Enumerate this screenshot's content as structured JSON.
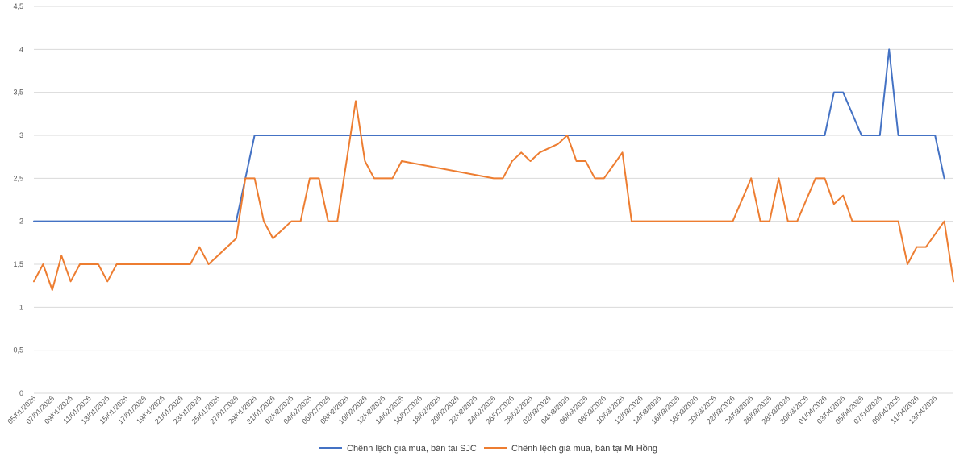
{
  "chart_data": {
    "type": "line",
    "title": "",
    "xlabel": "",
    "ylabel": "",
    "ylim": [
      0,
      4.5
    ],
    "y_ticks": [
      "0",
      "0,5",
      "1",
      "1,5",
      "2",
      "2,5",
      "3",
      "3,5",
      "4",
      "4,5"
    ],
    "grid": "horizontal",
    "legend_position": "bottom",
    "x_tick_labels": [
      "05/01/2026",
      "07/01/2026",
      "09/01/2026",
      "11/01/2026",
      "13/01/2026",
      "15/01/2026",
      "17/01/2026",
      "19/01/2026",
      "21/01/2026",
      "23/01/2026",
      "25/01/2026",
      "27/01/2026",
      "29/01/2026",
      "31/01/2026",
      "02/02/2026",
      "04/02/2026",
      "06/02/2026",
      "08/02/2026",
      "10/02/2026",
      "12/02/2026",
      "14/02/2026",
      "16/02/2026",
      "18/02/2026",
      "20/02/2026",
      "22/02/2026",
      "24/02/2026",
      "26/02/2026",
      "28/02/2026",
      "02/03/2026",
      "04/03/2026",
      "06/03/2026",
      "08/03/2026",
      "10/03/2026",
      "12/03/2026",
      "14/03/2026",
      "16/03/2026",
      "18/03/2026",
      "20/03/2026",
      "22/03/2026",
      "24/03/2026",
      "26/03/2026",
      "28/03/2026",
      "30/03/2026",
      "01/04/2026",
      "03/04/2026",
      "05/04/2026",
      "07/04/2026",
      "09/04/2026",
      "11/04/2026",
      "13/04/2026"
    ],
    "series": [
      {
        "name": "Chênh lệch giá mua, bán tại SJC",
        "color": "#4472C4",
        "points": [
          [
            "05/01/2026",
            2
          ],
          [
            "27/01/2026",
            2
          ],
          [
            "29/01/2026",
            3
          ],
          [
            "01/04/2026",
            3
          ],
          [
            "02/04/2026",
            3.5
          ],
          [
            "03/04/2026",
            3.5
          ],
          [
            "05/04/2026",
            3
          ],
          [
            "07/04/2026",
            3
          ],
          [
            "08/04/2026",
            4
          ],
          [
            "09/04/2026",
            3
          ],
          [
            "13/04/2026",
            3
          ],
          [
            "14/04/2026",
            2.5
          ]
        ]
      },
      {
        "name": "Chênh lệch giá mua, bán tại Mi Hồng",
        "color": "#ED7D31",
        "points": [
          [
            "05/01/2026",
            1.3
          ],
          [
            "06/01/2026",
            1.5
          ],
          [
            "07/01/2026",
            1.2
          ],
          [
            "08/01/2026",
            1.6
          ],
          [
            "09/01/2026",
            1.3
          ],
          [
            "10/01/2026",
            1.5
          ],
          [
            "12/01/2026",
            1.5
          ],
          [
            "13/01/2026",
            1.3
          ],
          [
            "14/01/2026",
            1.5
          ],
          [
            "22/01/2026",
            1.5
          ],
          [
            "23/01/2026",
            1.7
          ],
          [
            "24/01/2026",
            1.5
          ],
          [
            "27/01/2026",
            1.8
          ],
          [
            "28/01/2026",
            2.5
          ],
          [
            "29/01/2026",
            2.5
          ],
          [
            "30/01/2026",
            2.0
          ],
          [
            "31/01/2026",
            1.8
          ],
          [
            "02/02/2026",
            2.0
          ],
          [
            "03/02/2026",
            2.0
          ],
          [
            "04/02/2026",
            2.5
          ],
          [
            "05/02/2026",
            2.5
          ],
          [
            "06/02/2026",
            2.0
          ],
          [
            "07/02/2026",
            2.0
          ],
          [
            "09/02/2026",
            3.4
          ],
          [
            "10/02/2026",
            2.7
          ],
          [
            "11/02/2026",
            2.5
          ],
          [
            "13/02/2026",
            2.5
          ],
          [
            "14/02/2026",
            2.7
          ],
          [
            "24/02/2026",
            2.5
          ],
          [
            "25/02/2026",
            2.5
          ],
          [
            "26/02/2026",
            2.7
          ],
          [
            "27/02/2026",
            2.8
          ],
          [
            "28/02/2026",
            2.7
          ],
          [
            "01/03/2026",
            2.8
          ],
          [
            "03/03/2026",
            2.9
          ],
          [
            "04/03/2026",
            3.0
          ],
          [
            "05/03/2026",
            2.7
          ],
          [
            "06/03/2026",
            2.7
          ],
          [
            "07/03/2026",
            2.5
          ],
          [
            "08/03/2026",
            2.5
          ],
          [
            "10/03/2026",
            2.8
          ],
          [
            "11/03/2026",
            2.0
          ],
          [
            "22/03/2026",
            2.0
          ],
          [
            "24/03/2026",
            2.5
          ],
          [
            "25/03/2026",
            2.0
          ],
          [
            "26/03/2026",
            2.0
          ],
          [
            "27/03/2026",
            2.5
          ],
          [
            "28/03/2026",
            2.0
          ],
          [
            "29/03/2026",
            2.0
          ],
          [
            "31/03/2026",
            2.5
          ],
          [
            "01/04/2026",
            2.5
          ],
          [
            "02/04/2026",
            2.2
          ],
          [
            "03/04/2026",
            2.3
          ],
          [
            "04/04/2026",
            2.0
          ],
          [
            "09/04/2026",
            2.0
          ],
          [
            "10/04/2026",
            1.5
          ],
          [
            "11/04/2026",
            1.7
          ],
          [
            "12/04/2026",
            1.7
          ],
          [
            "14/04/2026",
            2.0
          ],
          [
            "15/04/2026",
            1.3
          ]
        ]
      }
    ]
  }
}
